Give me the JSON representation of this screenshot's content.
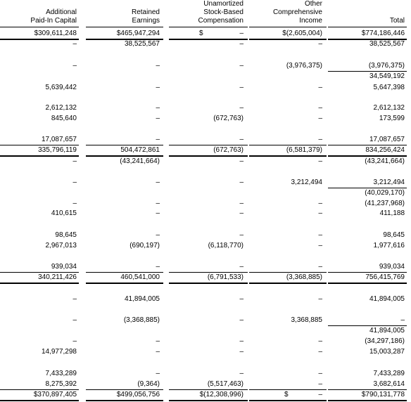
{
  "headers": [
    {
      "lines": [
        "Additional",
        "Paid-In Capital"
      ]
    },
    {
      "lines": [
        "Retained",
        "Earnings"
      ]
    },
    {
      "lines": [
        "Unamortized",
        "Stock-Based",
        "Compensation"
      ]
    },
    {
      "lines": [
        "Other",
        "Comprehensive",
        "Income"
      ]
    },
    {
      "lines": [
        "Total"
      ]
    }
  ],
  "dash": "–",
  "rows": [
    {
      "cells": [
        "$309,611,248",
        "$465,947,294",
        "–",
        "$(2,605,004)",
        "$774,186,446"
      ],
      "prefix": [
        "",
        "",
        "$",
        "",
        ""
      ]
    },
    {
      "cells": [
        "–",
        "38,525,567",
        "–",
        "–",
        "38,525,567"
      ]
    },
    {
      "cells": [
        "–",
        "–",
        "–",
        "(3,976,375)",
        "(3,976,375)"
      ]
    },
    {
      "cells": [
        "",
        "",
        "",
        "",
        "34,549,192"
      ]
    },
    {
      "cells": [
        "5,639,442",
        "–",
        "–",
        "–",
        "5,647,398"
      ]
    },
    {
      "cells": [
        "2,612,132",
        "–",
        "–",
        "–",
        "2,612,132"
      ]
    },
    {
      "cells": [
        "845,640",
        "–",
        "(672,763)",
        "–",
        "173,599"
      ]
    },
    {
      "cells": [
        "17,087,657",
        "–",
        "–",
        "–",
        "17,087,657"
      ]
    },
    {
      "cells": [
        "335,796,119",
        "504,472,861",
        "(672,763)",
        "(6,581,379)",
        "834,256,424"
      ]
    },
    {
      "cells": [
        "–",
        "(43,241,664)",
        "–",
        "–",
        "(43,241,664)"
      ]
    },
    {
      "cells": [
        "–",
        "–",
        "–",
        "3,212,494",
        "3,212,494"
      ]
    },
    {
      "cells": [
        "",
        "",
        "",
        "",
        "(40,029,170)"
      ]
    },
    {
      "cells": [
        "–",
        "–",
        "–",
        "–",
        "(41,237,968)"
      ]
    },
    {
      "cells": [
        "410,615",
        "–",
        "–",
        "–",
        "411,188"
      ]
    },
    {
      "cells": [
        "98,645",
        "–",
        "–",
        "–",
        "98,645"
      ]
    },
    {
      "cells": [
        "2,967,013",
        "(690,197)",
        "(6,118,770)",
        "–",
        "1,977,616"
      ]
    },
    {
      "cells": [
        "939,034",
        "–",
        "–",
        "–",
        "939,034"
      ]
    },
    {
      "cells": [
        "340,211,426",
        "460,541,000",
        "(6,791,533)",
        "(3,368,885)",
        "756,415,769"
      ]
    },
    {
      "cells": [
        "–",
        "41,894,005",
        "–",
        "–",
        "41,894,005"
      ]
    },
    {
      "cells": [
        "–",
        "(3,368,885)",
        "–",
        "3,368,885",
        "–"
      ]
    },
    {
      "cells": [
        "",
        "",
        "",
        "",
        "41,894,005"
      ]
    },
    {
      "cells": [
        "–",
        "–",
        "–",
        "–",
        "(34,297,186)"
      ]
    },
    {
      "cells": [
        "14,977,298",
        "–",
        "–",
        "–",
        "15,003,287"
      ]
    },
    {
      "cells": [
        "7,433,289",
        "–",
        "–",
        "–",
        "7,433,289"
      ]
    },
    {
      "cells": [
        "8,275,392",
        "(9,364)",
        "(5,517,463)",
        "–",
        "3,682,614"
      ]
    },
    {
      "cells": [
        "$370,897,405",
        "$499,056,756",
        "$(12,308,996)",
        "–",
        "$790,131,778"
      ],
      "prefix": [
        "",
        "",
        "",
        "$",
        ""
      ]
    }
  ]
}
